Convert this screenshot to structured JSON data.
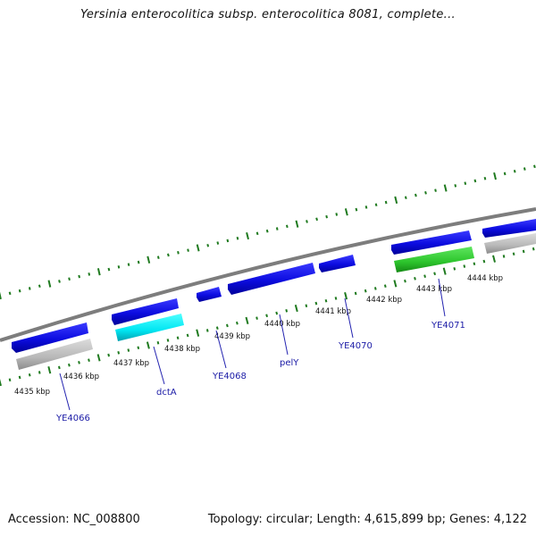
{
  "title": "Yersinia enterocolitica subsp. enterocolitica 8081, complete...",
  "footer": {
    "accession": "Accession: NC_008800",
    "summary": "Topology: circular; Length: 4,615,899 bp; Genes: 4,122"
  },
  "ticks": [
    "4435 kbp",
    "4436 kbp",
    "4437 kbp",
    "4438 kbp",
    "4439 kbp",
    "4440 kbp",
    "4441 kbp",
    "4442 kbp",
    "4443 kbp",
    "4444 kbp"
  ],
  "genes": [
    {
      "label": "YE4066"
    },
    {
      "label": "dctA"
    },
    {
      "label": "YE4068"
    },
    {
      "label": "pelY"
    },
    {
      "label": "YE4070"
    },
    {
      "label": "YE4071"
    }
  ],
  "colors": {
    "cds": "#1010ee",
    "highlight_cyan": "#00e8f0",
    "highlight_green": "#33cc33",
    "grey_feature": "#b8b8b8",
    "backbone": "#7a7a7a",
    "tick": "#1f7a1f",
    "label": "#1a1aa6"
  }
}
